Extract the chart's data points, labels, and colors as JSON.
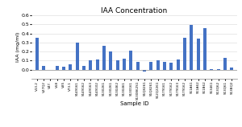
{
  "title": "IAA Concentration",
  "xlabel": "Sample ID",
  "ylabel": "IAA (mg/ml)",
  "ylim": [
    -0.1,
    0.6
  ],
  "yticks": [
    0.0,
    0.1,
    0.2,
    0.3,
    0.4,
    0.5,
    0.6
  ],
  "bar_color": "#4472C4",
  "background_color": "#ffffff",
  "grid_color": "#E0E0E0",
  "categories": [
    "V13.2",
    "V27Q2",
    "V47.",
    "V58",
    "V85",
    "V73.1",
    "S149161",
    "S149162",
    "S149163",
    "S149102",
    "S130261",
    "S130261",
    "S130462",
    "S130461",
    "S130161",
    "S130862S1",
    "S1Q8261",
    "S1Q8261",
    "S12Q2261",
    "S179161",
    "S179162",
    "S179163",
    "S179162",
    "S11A61",
    "S11A62",
    "S11B62",
    "S13461",
    "S13Q62",
    "S13Q61",
    "S13BQ2"
  ],
  "values": [
    0.35,
    0.04,
    -0.005,
    0.04,
    0.03,
    0.06,
    0.3,
    0.04,
    0.1,
    0.11,
    0.26,
    0.2,
    0.1,
    0.12,
    0.21,
    0.09,
    -0.02,
    0.09,
    0.1,
    0.09,
    0.08,
    0.11,
    0.35,
    0.49,
    0.34,
    0.46,
    0.005,
    0.005,
    0.13,
    0.02
  ]
}
